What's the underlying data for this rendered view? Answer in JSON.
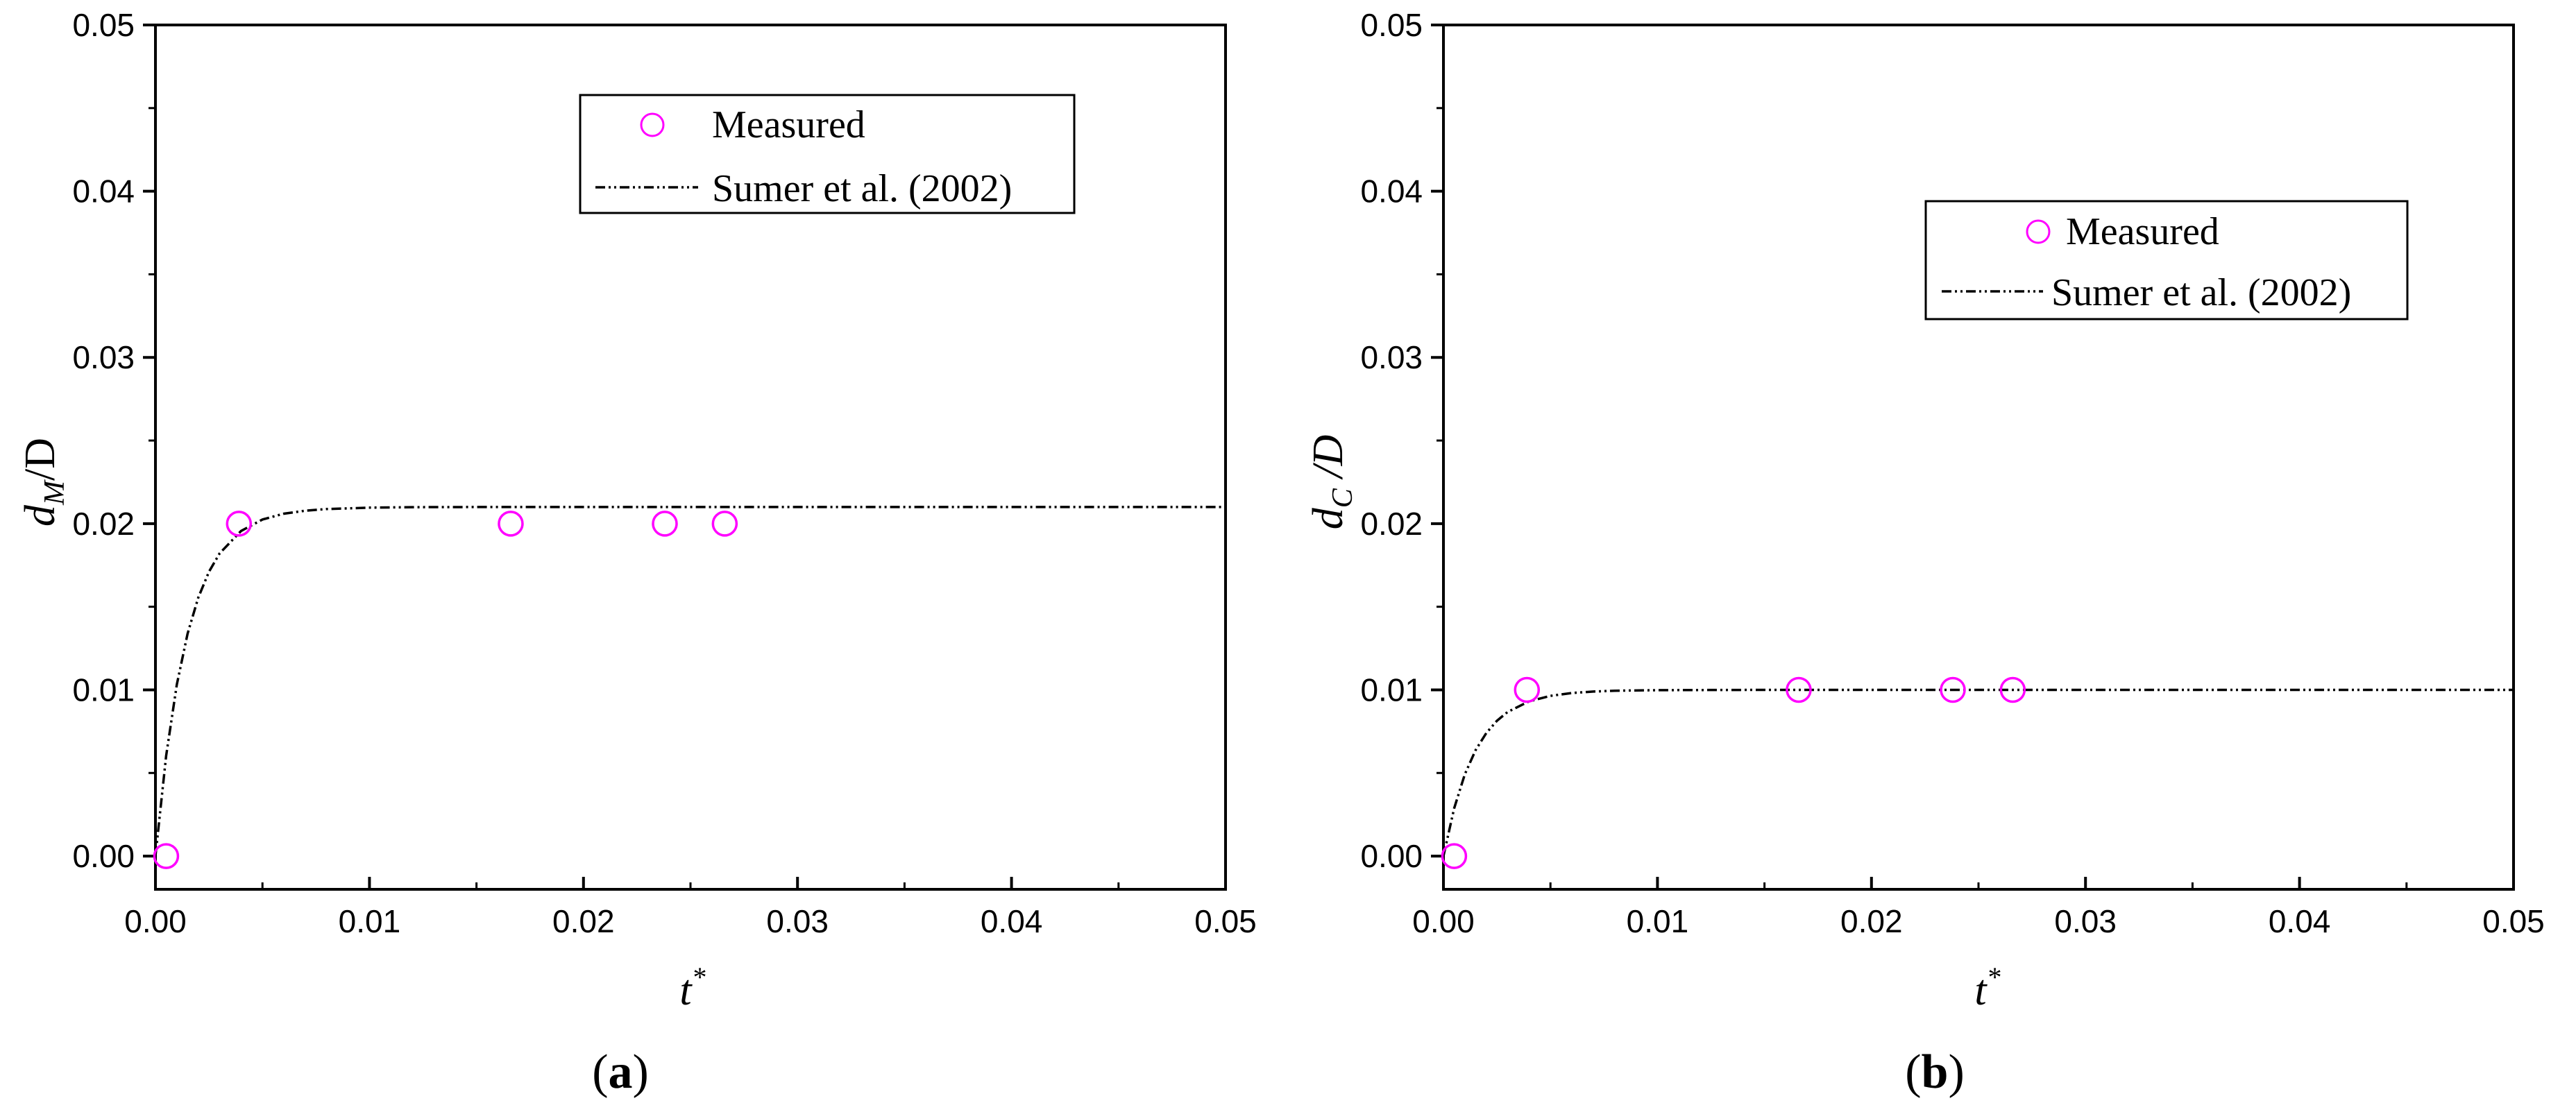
{
  "colors": {
    "measured": "#ff00ff",
    "curve": "#000000",
    "axis": "#000000"
  },
  "legend": {
    "measured_label": "Measured",
    "curve_label": "Sumer et al. (2002)"
  },
  "x_ticks": [
    "0.00",
    "0.01",
    "0.02",
    "0.03",
    "0.04",
    "0.05"
  ],
  "y_ticks": [
    "0.00",
    "0.01",
    "0.02",
    "0.03",
    "0.04",
    "0.05"
  ],
  "chart_data": [
    {
      "type": "scatter",
      "panel": "a",
      "panel_label": "a",
      "xlabel": {
        "main": "t",
        "sup": "*"
      },
      "ylabel": {
        "main": "d",
        "sub": "M",
        "suffix": "/D"
      },
      "xlim": [
        0,
        0.05
      ],
      "ylim": [
        -0.002,
        0.05
      ],
      "grid": false,
      "legend_position": "top-center",
      "series": [
        {
          "name": "Measured",
          "style": "markers",
          "x": [
            0.0005,
            0.0039,
            0.0166,
            0.0238,
            0.0266
          ],
          "y": [
            0.0,
            0.02,
            0.02,
            0.02,
            0.02
          ]
        },
        {
          "name": "Sumer et al. (2002)",
          "style": "dash-dot-dot line",
          "x": [
            0,
            0.0005,
            0.001,
            0.0015,
            0.002,
            0.0025,
            0.003,
            0.004,
            0.005,
            0.006,
            0.007,
            0.008,
            0.01,
            0.012,
            0.015,
            0.02,
            0.03,
            0.04,
            0.05
          ],
          "y": [
            0,
            0.00603,
            0.01032,
            0.01338,
            0.01555,
            0.0171,
            0.01821,
            0.01956,
            0.02025,
            0.0206,
            0.02078,
            0.02088,
            0.02096,
            0.02099,
            0.021,
            0.021,
            0.021,
            0.021,
            0.021
          ]
        }
      ]
    },
    {
      "type": "scatter",
      "panel": "b",
      "panel_label": "b",
      "xlabel": {
        "main": "t",
        "sup": "*"
      },
      "ylabel": {
        "main": "d",
        "sub": "C",
        "suffix": " /D"
      },
      "xlim": [
        0,
        0.05
      ],
      "ylim": [
        -0.002,
        0.05
      ],
      "grid": false,
      "legend_position": "top-right",
      "series": [
        {
          "name": "Measured",
          "style": "markers",
          "x": [
            0.0005,
            0.0039,
            0.0166,
            0.0238,
            0.0266
          ],
          "y": [
            0.0,
            0.01,
            0.01,
            0.01,
            0.01
          ]
        },
        {
          "name": "Sumer et al. (2002)",
          "style": "dash-dot-dot line",
          "x": [
            0,
            0.0005,
            0.001,
            0.0015,
            0.002,
            0.0025,
            0.003,
            0.004,
            0.005,
            0.006,
            0.007,
            0.008,
            0.01,
            0.012,
            0.015,
            0.02,
            0.03,
            0.04,
            0.05
          ],
          "y": [
            0,
            0.00287,
            0.00492,
            0.00637,
            0.0074,
            0.00814,
            0.00867,
            0.00931,
            0.00964,
            0.00981,
            0.0099,
            0.00995,
            0.00998,
            0.00999,
            0.01,
            0.01,
            0.01,
            0.01,
            0.01
          ]
        }
      ]
    }
  ]
}
